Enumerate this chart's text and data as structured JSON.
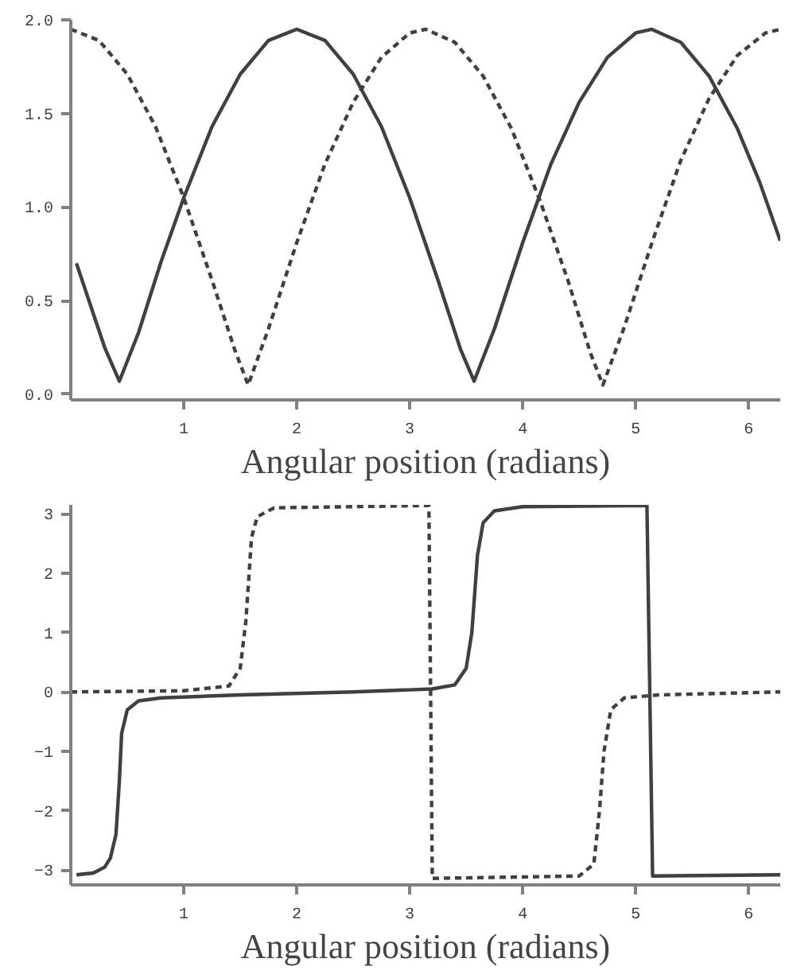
{
  "chart_data": [
    {
      "type": "line",
      "xlabel": "Angular position (radians)",
      "xlim": [
        0,
        6.28
      ],
      "ylim": [
        -0.03,
        2.0
      ],
      "xticks": [
        1,
        2,
        3,
        4,
        5,
        6
      ],
      "yticks": [
        {
          "value": 0,
          "label": "0.0"
        },
        {
          "value": 0.5,
          "label": "0.5"
        },
        {
          "value": 1,
          "label": "1.0"
        },
        {
          "value": 1.5,
          "label": "1.5"
        },
        {
          "value": 2,
          "label": "2.0"
        }
      ],
      "grid": false,
      "series": [
        {
          "color": "#404040",
          "line_style": "solid",
          "x": [
            0.05,
            0.2,
            0.3,
            0.43,
            0.6,
            0.8,
            1.0,
            1.25,
            1.5,
            1.75,
            2.0,
            2.25,
            2.5,
            2.75,
            3.0,
            3.25,
            3.45,
            3.57,
            3.75,
            4.0,
            4.25,
            4.5,
            4.75,
            5.0,
            5.14,
            5.4,
            5.65,
            5.9,
            6.1,
            6.28
          ],
          "values": [
            0.7,
            0.43,
            0.25,
            0.07,
            0.33,
            0.71,
            1.05,
            1.43,
            1.71,
            1.89,
            1.95,
            1.89,
            1.71,
            1.43,
            1.05,
            0.61,
            0.24,
            0.07,
            0.35,
            0.81,
            1.23,
            1.56,
            1.8,
            1.93,
            1.95,
            1.88,
            1.7,
            1.42,
            1.13,
            0.82
          ]
        },
        {
          "color": "#404040",
          "line_style": "dashed",
          "x": [
            0,
            0.25,
            0.5,
            0.75,
            1.0,
            1.25,
            1.45,
            1.57,
            1.75,
            2.0,
            2.25,
            2.5,
            2.75,
            3.0,
            3.14,
            3.4,
            3.65,
            3.9,
            4.15,
            4.4,
            4.6,
            4.71,
            4.9,
            5.15,
            5.4,
            5.65,
            5.9,
            6.15,
            6.28
          ],
          "values": [
            1.95,
            1.89,
            1.71,
            1.43,
            1.05,
            0.61,
            0.24,
            0.05,
            0.35,
            0.81,
            1.23,
            1.56,
            1.8,
            1.93,
            1.95,
            1.88,
            1.7,
            1.42,
            1.04,
            0.61,
            0.22,
            0.05,
            0.36,
            0.82,
            1.25,
            1.58,
            1.81,
            1.93,
            1.95
          ]
        }
      ]
    },
    {
      "type": "line",
      "xlabel": "Angular position (radians)",
      "xlim": [
        0,
        6.28
      ],
      "ylim": [
        -3.25,
        3.15
      ],
      "xticks": [
        1,
        2,
        3,
        4,
        5,
        6
      ],
      "yticks": [
        -3,
        -2,
        -1,
        0,
        1,
        2,
        3
      ],
      "grid": false,
      "series": [
        {
          "color": "#404040",
          "line_style": "solid",
          "x": [
            0.05,
            0.2,
            0.3,
            0.35,
            0.4,
            0.43,
            0.45,
            0.5,
            0.6,
            0.8,
            1.5,
            2.5,
            3.2,
            3.4,
            3.5,
            3.55,
            3.6,
            3.65,
            3.75,
            4.0,
            5.1,
            5.15,
            6.28
          ],
          "values": [
            -3.08,
            -3.05,
            -2.95,
            -2.8,
            -2.4,
            -1.5,
            -0.7,
            -0.3,
            -0.15,
            -0.1,
            -0.05,
            0,
            0.05,
            0.12,
            0.4,
            1.0,
            2.3,
            2.85,
            3.05,
            3.12,
            3.14,
            -3.1,
            -3.08
          ]
        },
        {
          "color": "#404040",
          "line_style": "dashed",
          "x": [
            0,
            1.0,
            1.4,
            1.5,
            1.55,
            1.6,
            1.65,
            1.8,
            3.17,
            3.2,
            4.5,
            4.63,
            4.68,
            4.72,
            4.78,
            4.9,
            5.2,
            6.28
          ],
          "values": [
            0,
            0.02,
            0.1,
            0.4,
            1.2,
            2.6,
            2.95,
            3.1,
            3.14,
            -3.14,
            -3.1,
            -2.9,
            -2.0,
            -1.0,
            -0.3,
            -0.1,
            -0.05,
            0
          ]
        }
      ]
    }
  ]
}
